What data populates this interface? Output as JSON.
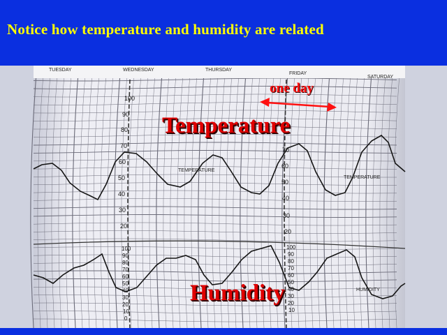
{
  "slide": {
    "title": "Notice how temperature and humidity are related",
    "background_color": "#0a2fe0",
    "title_color": "#ffff00"
  },
  "chart_photo": {
    "day_headers": [
      "TUESDAY",
      "WEDNESDAY",
      "THURSDAY",
      "FRIDAY",
      "SATURDAY"
    ],
    "temperature_scale": [
      "100",
      "90",
      "80",
      "70",
      "60",
      "50",
      "40",
      "30",
      "20"
    ],
    "humidity_scale": [
      "100",
      "90",
      "80",
      "70",
      "60",
      "50",
      "40",
      "30",
      "20",
      "10",
      "0"
    ],
    "trace_labels": {
      "temperature": "TEMPERATURE",
      "humidity": "HUMIDITY"
    }
  },
  "annotations": {
    "temperature_label": "Temperature",
    "humidity_label": "Humidity",
    "one_day_label": "one day",
    "label_color": "#e00000"
  }
}
